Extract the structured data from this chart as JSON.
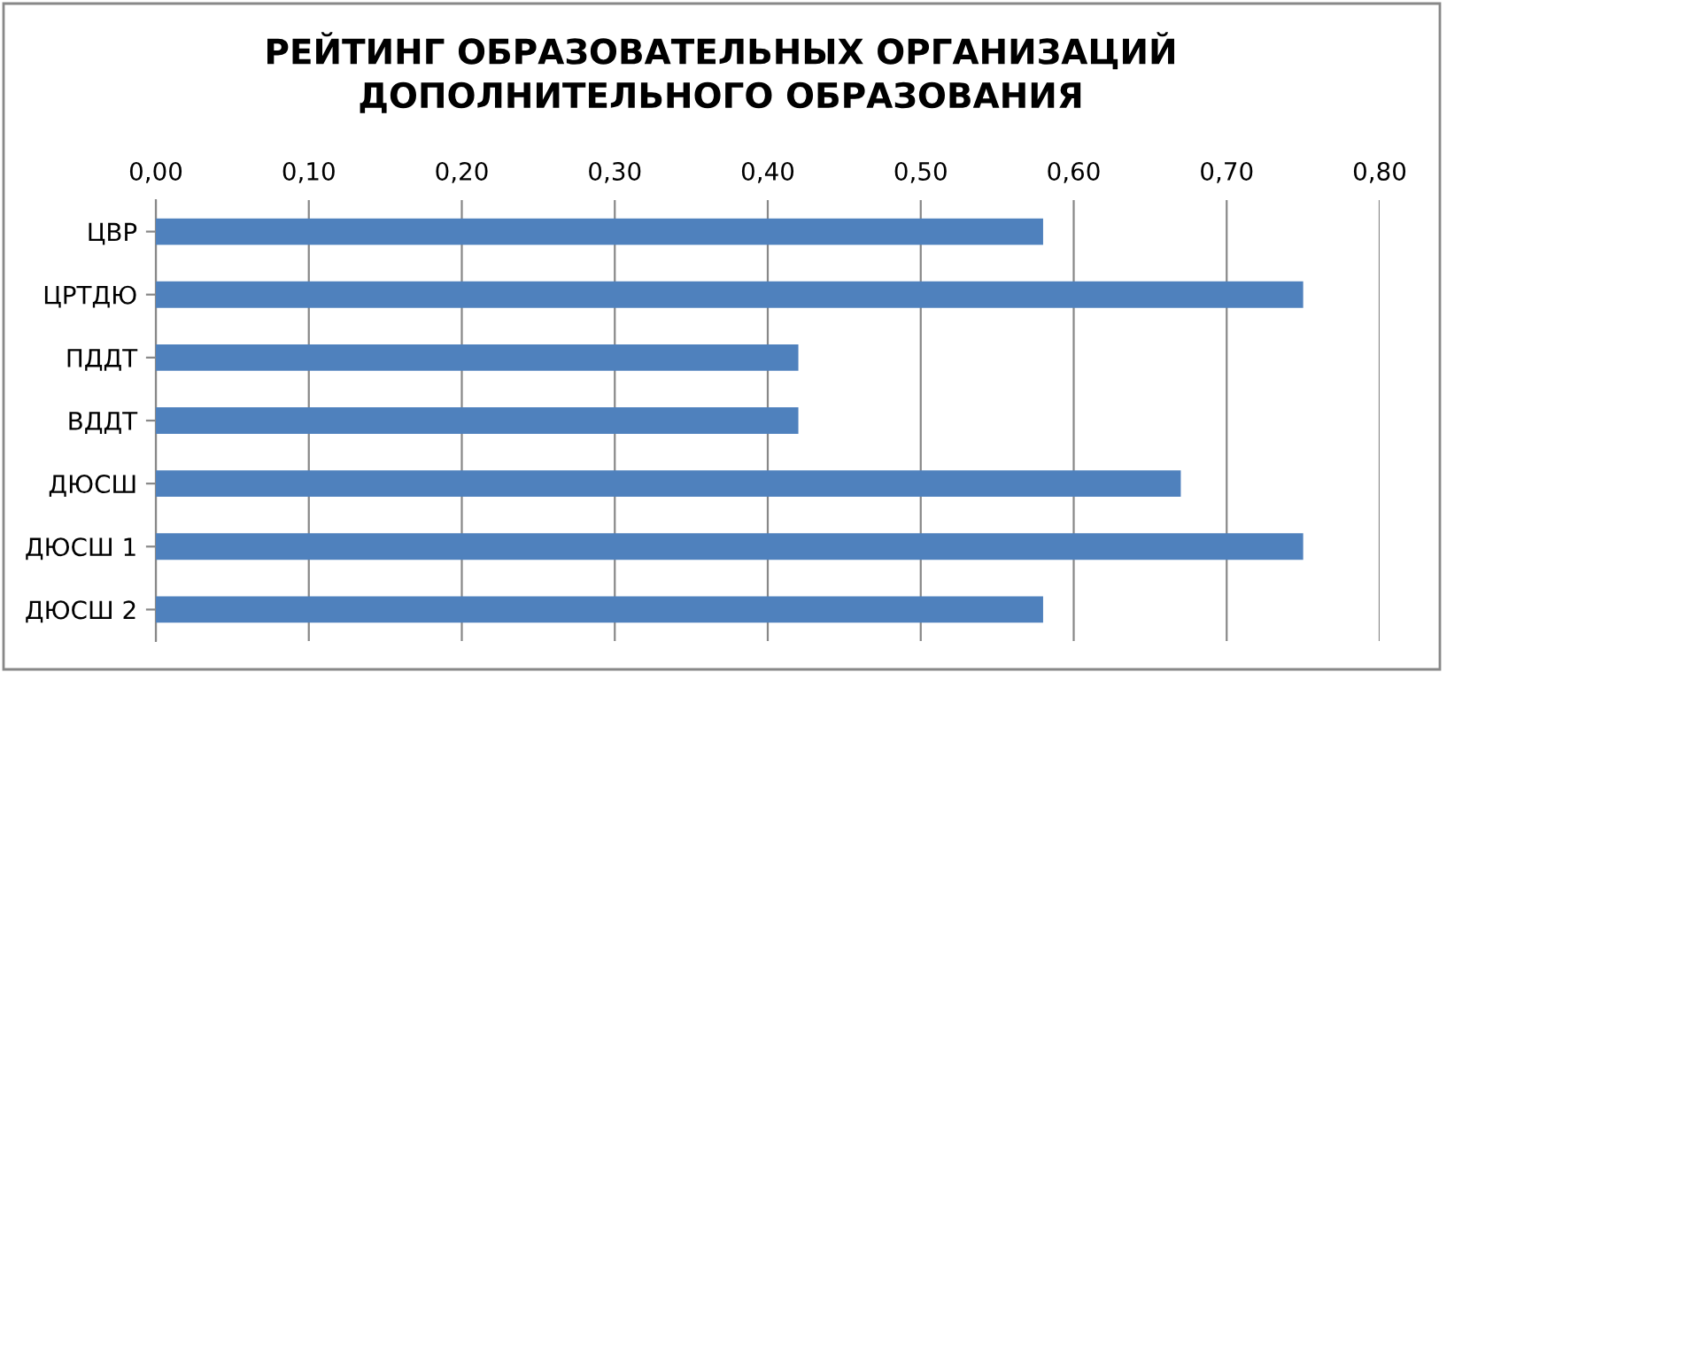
{
  "chart_data": {
    "type": "bar",
    "orientation": "horizontal",
    "title": "РЕЙТИНГ ОБРАЗОВАТЕЛЬНЫХ ОРГАНИЗАЦИЙ\nДОПОЛНИТЕЛЬНОГО ОБРАЗОВАНИЯ",
    "categories": [
      "ЦВР",
      "ЦРТДЮ",
      "ПДДТ",
      "ВДДТ",
      "ДЮСШ",
      "ДЮСШ 1",
      "ДЮСШ 2"
    ],
    "values": [
      0.58,
      0.75,
      0.42,
      0.42,
      0.67,
      0.75,
      0.58
    ],
    "color": "#4f81bd",
    "xlim": [
      0,
      0.8
    ],
    "xticks": [
      {
        "value": 0,
        "label": "0,00"
      },
      {
        "value": 0.1,
        "label": "0,10"
      },
      {
        "value": 0.2,
        "label": "0,20"
      },
      {
        "value": 0.3,
        "label": "0,30"
      },
      {
        "value": 0.4,
        "label": "0,40"
      },
      {
        "value": 0.5,
        "label": "0,50"
      },
      {
        "value": 0.6,
        "label": "0,60"
      },
      {
        "value": 0.7,
        "label": "0,70"
      },
      {
        "value": 0.8,
        "label": "0,80"
      }
    ],
    "grid": "x"
  }
}
